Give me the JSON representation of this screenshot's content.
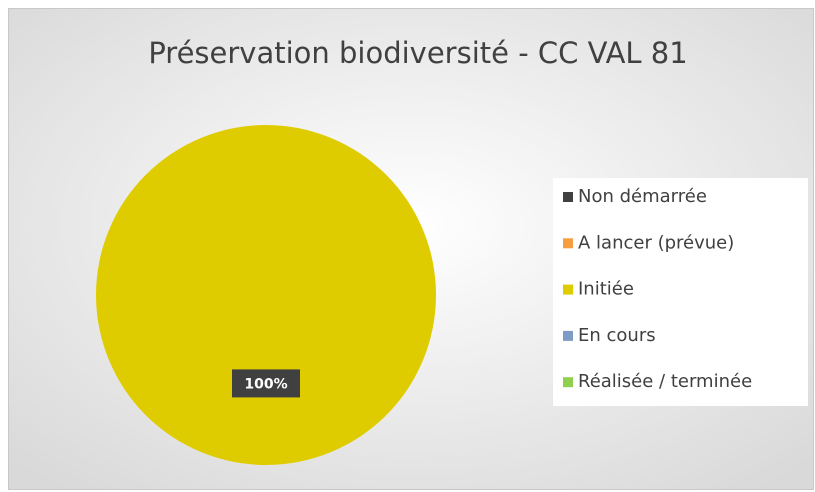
{
  "chart_data": {
    "type": "pie",
    "title": "Préservation biodiversité - CC VAL 81",
    "categories": [
      "Non démarrée",
      "A lancer (prévue)",
      "Initiée",
      "En cours",
      "Réalisée / terminée"
    ],
    "values": [
      0,
      0,
      100,
      0,
      0
    ],
    "value_labels": [
      null,
      null,
      "100%",
      null,
      null
    ],
    "colors": [
      "#404040",
      "#f59d3f",
      "#dfcc00",
      "#7f9cc6",
      "#8fd14f"
    ],
    "legend": "right"
  }
}
